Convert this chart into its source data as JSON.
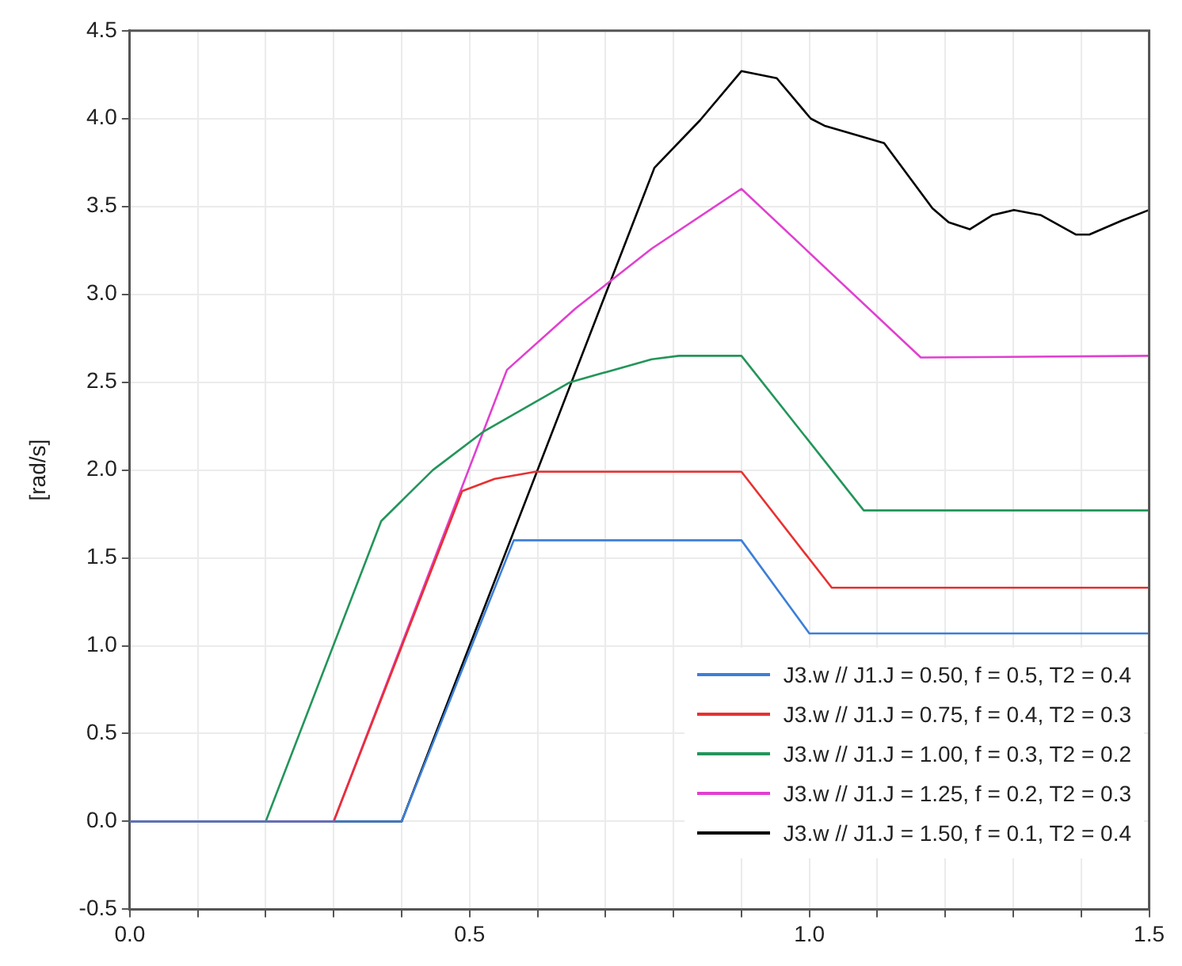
{
  "chart_data": {
    "type": "line",
    "ylabel": "[rad/s]",
    "xlim": [
      0,
      1.5
    ],
    "ylim": [
      -0.5,
      4.5
    ],
    "xticks": [
      {
        "value": 0,
        "label": "0.0"
      },
      {
        "value": 0.1,
        "label": null
      },
      {
        "value": 0.2,
        "label": null
      },
      {
        "value": 0.3,
        "label": null
      },
      {
        "value": 0.4,
        "label": null
      },
      0.5,
      {
        "value": 0.6,
        "label": null
      },
      {
        "value": 0.7,
        "label": null
      },
      {
        "value": 0.8,
        "label": null
      },
      {
        "value": 0.9,
        "label": null
      },
      {
        "value": 1,
        "label": "1.0"
      },
      {
        "value": 1.1,
        "label": null
      },
      {
        "value": 1.2,
        "label": null
      },
      {
        "value": 1.3,
        "label": null
      },
      {
        "value": 1.4,
        "label": null
      },
      1.5
    ],
    "yticks": [
      -0.5,
      {
        "value": 0,
        "label": "0.0"
      },
      0.5,
      {
        "value": 1,
        "label": "1.0"
      },
      1.5,
      {
        "value": 2,
        "label": "2.0"
      },
      2.5,
      {
        "value": 3,
        "label": "3.0"
      },
      3.5,
      {
        "value": 4,
        "label": "4.0"
      },
      4.5
    ],
    "grid": true,
    "legend": "bottom right",
    "marker": "none",
    "line_style": "solid",
    "series": [
      {
        "name": "J3.w // J1.J = 0.50, f = 0.5, T2 = 0.4",
        "color": "#3c7fd8",
        "x": [
          0,
          0.4,
          0.565,
          0.9,
          1.0,
          1.5
        ],
        "values": [
          0,
          0,
          1.6,
          1.6,
          1.07,
          1.07
        ]
      },
      {
        "name": "J3.w // J1.J = 0.75, f = 0.4, T2 = 0.3",
        "color": "#e83030",
        "x": [
          0,
          0.3,
          0.489,
          0.537,
          0.597,
          0.9,
          1.033,
          1.5
        ],
        "values": [
          0,
          0,
          1.88,
          1.95,
          1.99,
          1.99,
          1.33,
          1.33
        ]
      },
      {
        "name": "J3.w // J1.J = 1.00, f = 0.3, T2 = 0.2",
        "color": "#23955a",
        "x": [
          0,
          0.2,
          0.37,
          0.446,
          0.521,
          0.648,
          0.768,
          0.808,
          0.9,
          1.08,
          1.5
        ],
        "values": [
          0,
          0,
          1.71,
          2.0,
          2.22,
          2.5,
          2.63,
          2.65,
          2.65,
          1.77,
          1.77
        ]
      },
      {
        "name": "J3.w // J1.J = 1.25, f = 0.2, T2 = 0.3",
        "color": "#e040d0",
        "x": [
          0,
          0.3,
          0.555,
          0.656,
          0.768,
          0.9,
          1.164,
          1.5
        ],
        "values": [
          0,
          0,
          2.57,
          2.92,
          3.26,
          3.6,
          2.64,
          2.65
        ]
      },
      {
        "name": "J3.w // J1.J = 1.50, f = 0.1, T2 = 0.4",
        "color": "#000000",
        "x": [
          0,
          0.4,
          0.772,
          0.839,
          0.9,
          0.952,
          1.002,
          1.022,
          1.11,
          1.181,
          1.205,
          1.236,
          1.269,
          1.301,
          1.341,
          1.392,
          1.412,
          1.46,
          1.5
        ],
        "values": [
          0,
          0,
          3.72,
          3.99,
          4.27,
          4.23,
          4.0,
          3.96,
          3.86,
          3.49,
          3.41,
          3.37,
          3.45,
          3.48,
          3.45,
          3.34,
          3.34,
          3.42,
          3.48
        ]
      }
    ]
  }
}
